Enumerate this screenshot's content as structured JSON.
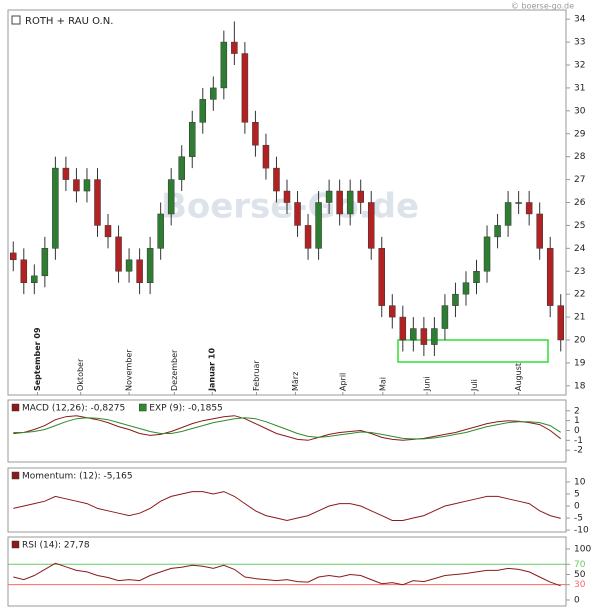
{
  "chart_data": [
    {
      "type": "candlestick",
      "title": "ROTH + RAU O.N.",
      "source": "© boerse-go.de",
      "watermark": "Boerse-Go.de",
      "up_color": "#2e7d32",
      "down_color": "#b22222",
      "open": [
        23.8,
        23.5,
        22.5,
        22.8,
        24,
        27.5,
        27,
        26.5,
        27,
        25,
        24.5,
        23,
        23.5,
        22.5,
        24,
        25.5,
        27,
        28,
        29.5,
        30.5,
        31,
        33,
        32.5,
        29.5,
        28.5,
        27.5,
        26.5,
        26,
        25,
        24,
        26,
        26.5,
        25.5,
        26.5,
        26,
        24,
        21.5,
        21,
        20,
        20.5,
        19.8,
        20.5,
        21.5,
        22,
        22.5,
        23,
        24.5,
        25,
        26,
        26,
        25.5,
        24,
        21.5
      ],
      "high": [
        24.3,
        24,
        23.3,
        24.5,
        28,
        28,
        27.5,
        27.5,
        27.5,
        25.5,
        25,
        24,
        24,
        24.5,
        26,
        27.5,
        28.5,
        30,
        31,
        31.5,
        33.5,
        33.9,
        33,
        30,
        29,
        28,
        27,
        26.5,
        25.5,
        26.5,
        27,
        27,
        27,
        27,
        26.5,
        24.5,
        22,
        21.5,
        21,
        21,
        21,
        22,
        22.5,
        23,
        23.5,
        25,
        25.5,
        26.5,
        26.5,
        26.5,
        26,
        24.5,
        22
      ],
      "low": [
        23,
        22,
        22,
        22.3,
        23.5,
        26.5,
        26,
        26,
        24.5,
        24,
        22.5,
        22.5,
        22,
        22,
        23.5,
        25,
        26.5,
        27.5,
        29,
        30,
        30.5,
        32,
        29,
        28,
        27,
        26,
        25.5,
        24.5,
        23.5,
        23.5,
        25.5,
        25,
        25,
        25.5,
        23.5,
        21,
        20.5,
        19.5,
        19.5,
        19.3,
        19.3,
        20,
        21,
        21.5,
        22,
        22.5,
        24,
        24.5,
        25.5,
        25,
        23.5,
        21,
        19.5
      ],
      "close": [
        23.5,
        22.5,
        22.8,
        24,
        27.5,
        27,
        26.5,
        27,
        25,
        24.5,
        23,
        23.5,
        22.5,
        24,
        25.5,
        27,
        28,
        29.5,
        30.5,
        31,
        33,
        32.5,
        29.5,
        28.5,
        27.5,
        26.5,
        26,
        25,
        24,
        26,
        26.5,
        25.5,
        26.5,
        26,
        24,
        21.5,
        21,
        20,
        20.5,
        19.8,
        20.5,
        21.5,
        22,
        22.5,
        23,
        24.5,
        25,
        26,
        26,
        25.5,
        24,
        21.5,
        20
      ],
      "xlim": [
        -0.5,
        52.5
      ],
      "xticks": [
        {
          "value": 2.3,
          "label": "September 09"
        },
        {
          "value": 6.4,
          "label": "Oktober"
        },
        {
          "value": 11,
          "label": "November"
        },
        {
          "value": 15.3,
          "label": "Dezember"
        },
        {
          "value": 18.9,
          "label": "Januar 10"
        },
        {
          "value": 23.1,
          "label": "Februar"
        },
        {
          "value": 26.8,
          "label": "März"
        },
        {
          "value": 31.3,
          "label": "April"
        },
        {
          "value": 35.1,
          "label": "Mai"
        },
        {
          "value": 39.3,
          "label": "Juni"
        },
        {
          "value": 43.8,
          "label": "Juli"
        },
        {
          "value": 48,
          "label": "August"
        }
      ],
      "ylim": [
        17.6,
        34.4
      ],
      "yticks": [
        18,
        19,
        20,
        21,
        22,
        23,
        24,
        25,
        26,
        27,
        28,
        29,
        30,
        31,
        32,
        33,
        34
      ]
    },
    {
      "type": "line",
      "xlim": [
        -0.5,
        52.5
      ],
      "ylim": [
        -3.2,
        3.1
      ],
      "yticks": [
        -2,
        -1,
        0,
        1,
        2
      ],
      "series": [
        {
          "name": "MACD (12,26): -0,8275",
          "color": "#8b1a1a",
          "values": [
            -0.3,
            -0.2,
            0.1,
            0.5,
            1.1,
            1.4,
            1.5,
            1.3,
            1.1,
            0.8,
            0.4,
            0.1,
            -0.3,
            -0.5,
            -0.4,
            -0.1,
            0.3,
            0.7,
            1.0,
            1.2,
            1.4,
            1.5,
            1.2,
            0.7,
            0.2,
            -0.3,
            -0.6,
            -0.9,
            -1.0,
            -0.7,
            -0.4,
            -0.2,
            -0.1,
            0.0,
            -0.3,
            -0.7,
            -0.9,
            -1.0,
            -0.9,
            -0.8,
            -0.6,
            -0.4,
            -0.2,
            0.1,
            0.4,
            0.7,
            0.9,
            1.0,
            0.95,
            0.8,
            0.6,
            0.0,
            -0.8275
          ]
        },
        {
          "name": "EXP (9): -0,1855",
          "color": "#2e8b2e",
          "values": [
            -0.2,
            -0.2,
            -0.1,
            0.1,
            0.5,
            0.9,
            1.2,
            1.3,
            1.25,
            1.1,
            0.8,
            0.5,
            0.2,
            -0.1,
            -0.3,
            -0.3,
            -0.1,
            0.2,
            0.5,
            0.8,
            1.0,
            1.2,
            1.3,
            1.2,
            0.9,
            0.5,
            0.1,
            -0.3,
            -0.6,
            -0.7,
            -0.6,
            -0.45,
            -0.3,
            -0.15,
            -0.2,
            -0.4,
            -0.6,
            -0.8,
            -0.85,
            -0.85,
            -0.75,
            -0.6,
            -0.4,
            -0.2,
            0.1,
            0.4,
            0.6,
            0.8,
            0.9,
            0.9,
            0.8,
            0.5,
            -0.1855
          ]
        }
      ]
    },
    {
      "type": "line",
      "xlim": [
        -0.5,
        52.5
      ],
      "ylim": [
        -10.8,
        15.8
      ],
      "yticks": [
        -10,
        -5,
        0,
        5,
        10
      ],
      "series": [
        {
          "name": "Momentum: (12): -5,165",
          "color": "#8b1a1a",
          "values": [
            -1,
            0,
            1,
            2,
            4,
            3,
            2,
            1,
            -1,
            -2,
            -3,
            -4,
            -3,
            -1,
            2,
            4,
            5,
            6,
            6,
            5,
            6,
            4,
            1,
            -2,
            -4,
            -5,
            -6,
            -5,
            -4,
            -2,
            0,
            1,
            1,
            0,
            -2,
            -4,
            -6,
            -6,
            -5,
            -4,
            -2,
            0,
            1,
            2,
            3,
            4,
            4,
            3,
            2,
            1,
            -2,
            -4,
            -5.165
          ]
        }
      ]
    },
    {
      "type": "line",
      "xlim": [
        -0.5,
        52.5
      ],
      "ylim": [
        -11.8,
        123.5
      ],
      "yticks": [
        0,
        30,
        50,
        70,
        100
      ],
      "hlines": [
        {
          "value": 70,
          "color": "#66cc66"
        },
        {
          "value": 30,
          "color": "#ff6666"
        }
      ],
      "series": [
        {
          "name": "RSI (14): 27,78",
          "color": "#8b1a1a",
          "values": [
            45,
            40,
            48,
            60,
            72,
            65,
            58,
            55,
            48,
            44,
            38,
            40,
            38,
            48,
            55,
            62,
            64,
            68,
            66,
            62,
            68,
            60,
            45,
            42,
            40,
            38,
            40,
            36,
            35,
            45,
            48,
            45,
            50,
            48,
            40,
            32,
            34,
            30,
            38,
            36,
            42,
            48,
            50,
            52,
            55,
            58,
            58,
            62,
            60,
            55,
            45,
            35,
            27.78
          ]
        }
      ]
    }
  ]
}
